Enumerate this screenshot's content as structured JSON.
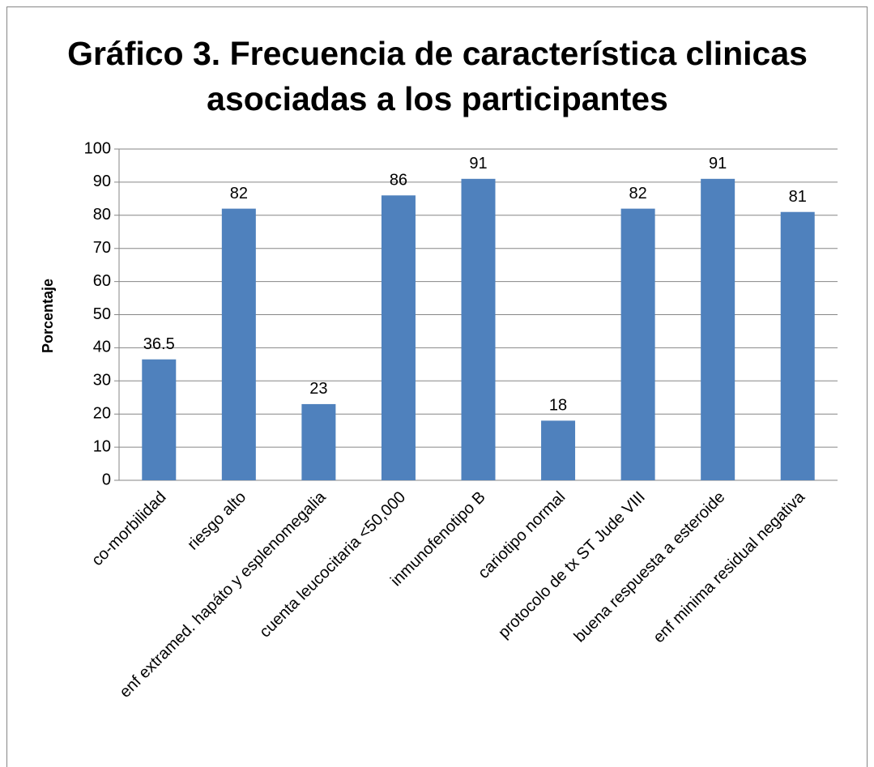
{
  "chart_data": {
    "type": "bar",
    "title": "Gráfico 3. Frecuencia de característica clinicas asociadas a los participantes",
    "y_label": "Porcentaje",
    "categories": [
      "co-morbilidad",
      "riesgo alto",
      "enf extramed. hapáto y esplenomegalia",
      "cuenta leucocitaria <50,000",
      "inmunofenotipo B",
      "cariotipo normal",
      "protocolo de tx ST Jude VIII",
      "buena respuesta a esteroide",
      "enf minima residual negativa"
    ],
    "values": [
      36.5,
      82,
      23,
      86,
      91,
      18,
      82,
      91,
      81
    ],
    "color": "#4f81bd",
    "ylim": [
      0,
      100
    ],
    "yticks": [
      0,
      10,
      20,
      30,
      40,
      50,
      60,
      70,
      80,
      90,
      100
    ],
    "grid": true
  }
}
